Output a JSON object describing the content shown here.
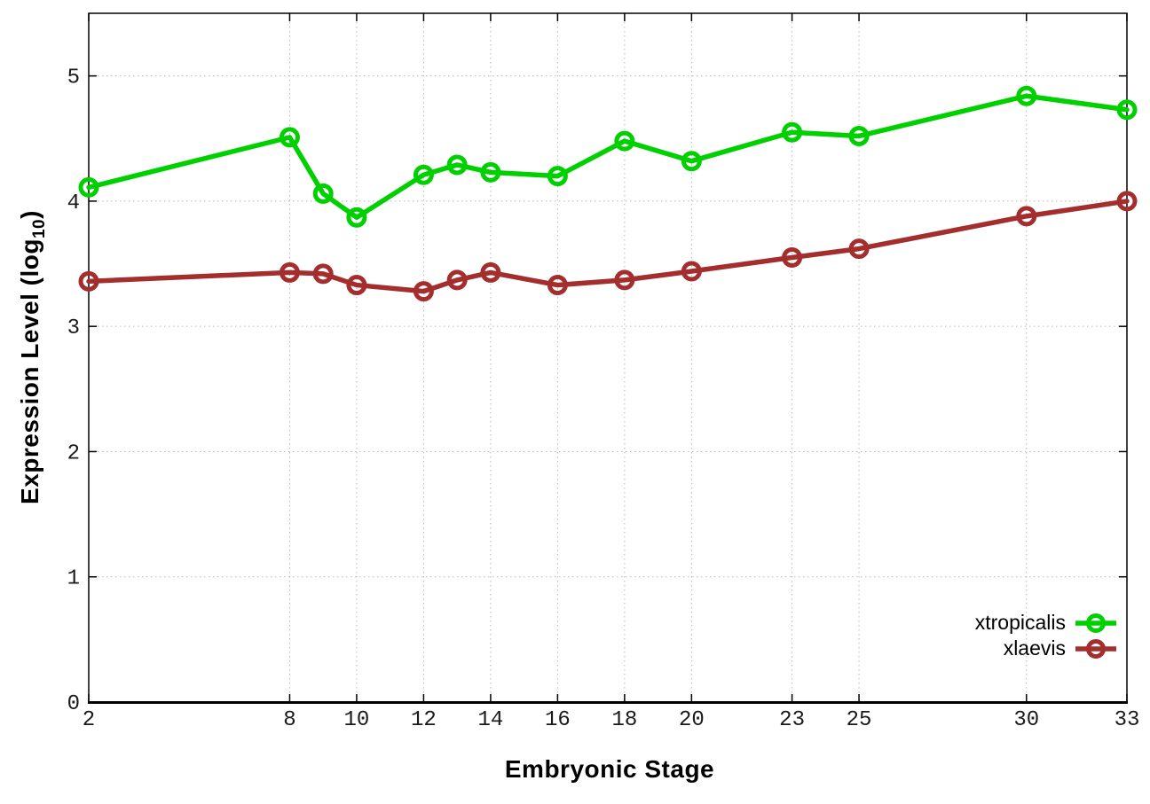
{
  "page": {
    "background": "#ffffff"
  },
  "chart_data": {
    "type": "line",
    "title": "",
    "xlabel": "Embryonic Stage",
    "ylabel": {
      "prefix": "Expression Level (log",
      "sub": "10",
      "suffix": ")"
    },
    "x": [
      2,
      8,
      9,
      10,
      12,
      13,
      14,
      16,
      18,
      20,
      23,
      25,
      30,
      33
    ],
    "xticks": [
      2,
      8,
      10,
      12,
      14,
      16,
      18,
      20,
      23,
      25,
      30,
      33
    ],
    "yticks": [
      0,
      1,
      2,
      3,
      4,
      5
    ],
    "xlim": [
      2,
      33
    ],
    "ylim": [
      0,
      5.5
    ],
    "grid": true,
    "grid_style": "dotted",
    "legend_position": "bottom-right-inside",
    "axis_color": "#000000",
    "grid_color": "#b8b8b8",
    "series": [
      {
        "name": "xtropicalis",
        "color": "#00d000",
        "marker": "open-circle",
        "values": [
          4.11,
          4.51,
          4.06,
          3.87,
          4.21,
          4.29,
          4.23,
          4.2,
          4.48,
          4.32,
          4.55,
          4.52,
          4.84,
          4.73
        ]
      },
      {
        "name": "xlaevis",
        "color": "#a42e2e",
        "marker": "open-circle",
        "values": [
          3.36,
          3.43,
          3.42,
          3.33,
          3.28,
          3.37,
          3.43,
          3.33,
          3.37,
          3.44,
          3.55,
          3.62,
          3.88,
          4.0
        ]
      }
    ]
  }
}
